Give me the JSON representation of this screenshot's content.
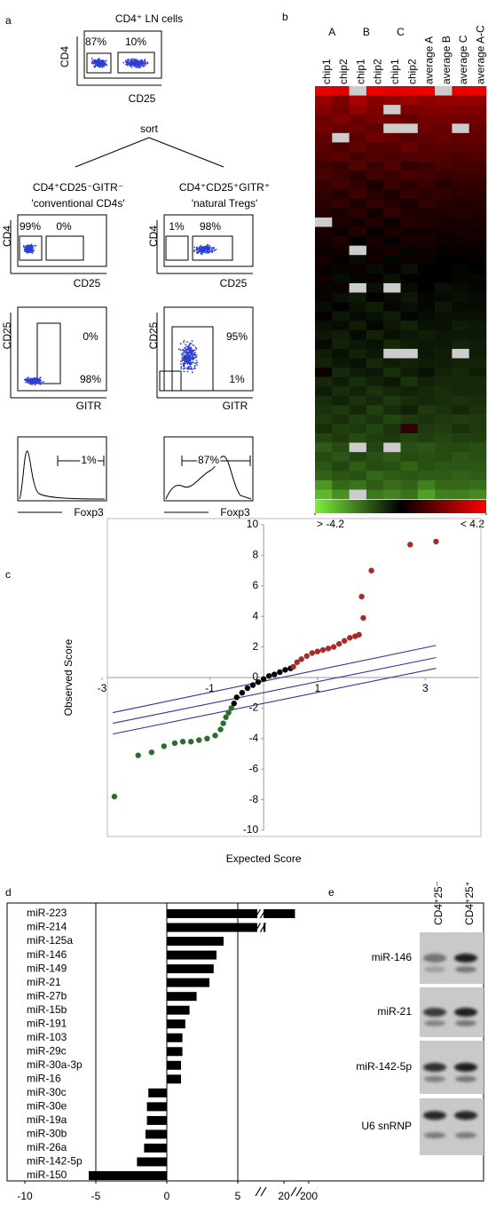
{
  "panel_labels": [
    "a",
    "b",
    "c",
    "d",
    "e"
  ],
  "panel_a": {
    "top": {
      "title": "CD4⁺ LN cells",
      "y_label": "CD4",
      "x_label": "CD25",
      "gates": [
        "87%",
        "10%"
      ]
    },
    "sort_label": "sort",
    "groups": [
      {
        "title": "CD4⁺CD25⁻GITR⁻",
        "subtitle": "'conventional CD4s'",
        "plot1": {
          "y_label": "CD4",
          "x_label": "CD25",
          "gates": [
            "99%",
            "0%"
          ]
        },
        "plot2": {
          "y_label": "CD25",
          "x_label": "GITR",
          "gates": [
            "0%",
            "98%"
          ]
        },
        "histogram": {
          "x_label": "Foxp3",
          "gate": "1%"
        }
      },
      {
        "title": "CD4⁺CD25⁺GITR⁺",
        "subtitle": "'natural Tregs'",
        "plot1": {
          "y_label": "CD4",
          "x_label": "CD25",
          "gates": [
            "1%",
            "98%"
          ]
        },
        "plot2": {
          "y_label": "CD25",
          "x_label": "GITR",
          "gates": [
            "95%",
            "1%"
          ]
        },
        "histogram": {
          "x_label": "Foxp3",
          "gate": "87%"
        }
      }
    ]
  },
  "chart_data": [
    {
      "type": "heatmap",
      "group_labels": [
        "A",
        "B",
        "C"
      ],
      "columns": [
        "chip1",
        "chip2",
        "chip1",
        "chip2",
        "chip1",
        "chip2",
        "average A",
        "average B",
        "average C",
        "average A-C"
      ],
      "zlim": [
        -4.2,
        4.2
      ],
      "colorbar_ticks": [
        {
          "value": -4.2,
          "label": "> -4.2"
        },
        {
          "value": 4.2,
          "label": "< 4.2"
        }
      ],
      "colors": [
        "#7cf03a",
        "#000000",
        "#ff0000"
      ],
      "missing_color": "#cccccc",
      "values": [
        [
          3.8,
          3.6,
          null,
          3.9,
          3.7,
          3.8,
          3.9,
          null,
          3.8,
          3.9
        ],
        [
          2.5,
          2.0,
          2.8,
          2.2,
          2.4,
          2.6,
          2.3,
          2.4,
          2.5,
          2.4
        ],
        [
          2.2,
          1.9,
          2.4,
          2.1,
          null,
          2.0,
          2.1,
          2.2,
          2.1,
          2.1
        ],
        [
          1.8,
          2.1,
          1.7,
          2.0,
          1.9,
          1.6,
          1.9,
          1.9,
          1.8,
          1.9
        ],
        [
          1.9,
          1.7,
          1.8,
          1.6,
          null,
          null,
          1.8,
          1.7,
          null,
          1.7
        ],
        [
          1.6,
          null,
          1.5,
          1.9,
          1.7,
          1.4,
          1.6,
          1.7,
          1.6,
          1.6
        ],
        [
          1.5,
          1.2,
          1.6,
          1.3,
          1.4,
          1.7,
          1.4,
          1.5,
          1.5,
          1.5
        ],
        [
          1.3,
          1.5,
          1.1,
          1.4,
          1.2,
          1.3,
          1.4,
          1.3,
          1.2,
          1.3
        ],
        [
          1.1,
          0.9,
          1.4,
          1.0,
          1.3,
          0.8,
          1.0,
          1.2,
          1.1,
          1.1
        ],
        [
          1.2,
          1.0,
          0.7,
          1.1,
          0.9,
          1.2,
          1.1,
          0.9,
          1.0,
          1.0
        ],
        [
          0.9,
          1.1,
          0.8,
          0.4,
          1.0,
          0.7,
          1.0,
          0.6,
          0.8,
          0.8
        ],
        [
          0.8,
          0.6,
          1.0,
          0.7,
          0.5,
          0.9,
          0.7,
          0.8,
          0.7,
          0.7
        ],
        [
          0.7,
          0.9,
          0.5,
          0.8,
          0.6,
          0.4,
          0.8,
          0.6,
          0.5,
          0.6
        ],
        [
          0.6,
          0.4,
          0.7,
          0.3,
          0.8,
          0.5,
          0.5,
          0.5,
          0.6,
          0.5
        ],
        [
          null,
          0.5,
          0.3,
          0.6,
          0.2,
          0.6,
          0.5,
          0.4,
          0.4,
          0.4
        ],
        [
          0.4,
          0.2,
          0.6,
          0.1,
          0.5,
          0.3,
          0.3,
          0.3,
          0.4,
          0.3
        ],
        [
          0.3,
          0.5,
          0.0,
          0.4,
          0.1,
          0.4,
          0.4,
          0.2,
          0.2,
          0.3
        ],
        [
          0.2,
          0.3,
          null,
          0.2,
          0.4,
          -0.1,
          0.2,
          0.1,
          0.1,
          0.1
        ],
        [
          0.4,
          0.1,
          -0.2,
          0.3,
          -0.1,
          0.2,
          0.2,
          0.0,
          0.0,
          0.1
        ],
        [
          0.1,
          -0.1,
          0.2,
          -0.2,
          0.1,
          -0.3,
          0.0,
          0.0,
          -0.1,
          0.0
        ],
        [
          0.3,
          -0.2,
          -0.1,
          0.1,
          -0.3,
          0.0,
          0.0,
          0.0,
          -0.1,
          -0.1
        ],
        [
          -0.1,
          0.2,
          null,
          -0.3,
          null,
          -0.2,
          0.0,
          -0.3,
          -0.2,
          -0.1
        ],
        [
          0.2,
          -0.3,
          -0.4,
          0.0,
          -0.2,
          -0.4,
          -0.1,
          -0.2,
          -0.3,
          -0.2
        ],
        [
          -0.2,
          0.0,
          -0.3,
          -0.5,
          -0.1,
          -0.3,
          -0.1,
          -0.4,
          -0.2,
          -0.2
        ],
        [
          0.1,
          -0.4,
          -0.2,
          -0.3,
          -0.5,
          -0.1,
          -0.2,
          -0.3,
          -0.3,
          -0.3
        ],
        [
          -0.3,
          -0.2,
          -0.5,
          -0.1,
          -0.4,
          -0.6,
          -0.3,
          -0.3,
          -0.5,
          -0.4
        ],
        [
          -0.4,
          -0.5,
          -0.2,
          -0.6,
          -0.3,
          -0.4,
          -0.5,
          -0.4,
          -0.4,
          -0.4
        ],
        [
          -0.2,
          -0.6,
          -0.4,
          -0.3,
          -0.7,
          -0.5,
          -0.4,
          -0.4,
          -0.6,
          -0.5
        ],
        [
          -0.5,
          -0.3,
          -0.6,
          -0.4,
          null,
          null,
          -0.4,
          -0.5,
          null,
          -0.5
        ],
        [
          -0.6,
          -0.4,
          -0.3,
          -0.7,
          -0.5,
          -0.6,
          -0.5,
          -0.5,
          -0.6,
          -0.6
        ],
        [
          0.2,
          -0.7,
          -0.5,
          -0.4,
          -0.8,
          -0.5,
          -0.3,
          -0.6,
          -0.7,
          -0.5
        ],
        [
          -0.7,
          -0.5,
          -0.8,
          -0.6,
          -0.4,
          -0.9,
          -0.6,
          -0.7,
          -0.7,
          -0.7
        ],
        [
          -0.5,
          -0.8,
          -0.6,
          -0.9,
          -0.7,
          -0.6,
          -0.7,
          -0.8,
          -0.7,
          -0.7
        ],
        [
          -0.8,
          -0.6,
          -0.9,
          -0.7,
          -1.0,
          -0.8,
          -0.7,
          -0.8,
          -0.9,
          -0.8
        ],
        [
          -0.9,
          -1.0,
          -0.7,
          -1.1,
          -0.8,
          -0.6,
          -1.0,
          -0.9,
          -0.7,
          -0.9
        ],
        [
          -1.0,
          -0.8,
          -1.1,
          -0.9,
          -1.2,
          -1.0,
          -0.9,
          -1.0,
          -1.1,
          -1.0
        ],
        [
          -0.8,
          -1.1,
          -1.0,
          -1.2,
          -0.9,
          0.8,
          -1.0,
          -1.1,
          -0.9,
          -1.0
        ],
        [
          -1.2,
          -1.0,
          -1.3,
          -1.1,
          -1.0,
          -1.2,
          -1.1,
          -1.2,
          -1.1,
          -1.1
        ],
        [
          -1.6,
          -1.3,
          null,
          -1.2,
          null,
          -1.4,
          -1.5,
          -1.3,
          -1.3,
          -1.4
        ],
        [
          -1.3,
          -1.5,
          -1.2,
          -1.4,
          -1.6,
          -1.3,
          -1.4,
          -1.3,
          -1.5,
          -1.4
        ],
        [
          -1.5,
          -1.2,
          -1.6,
          -1.3,
          -1.4,
          -1.7,
          -1.4,
          -1.5,
          -1.5,
          -1.5
        ],
        [
          -1.7,
          -1.5,
          -1.4,
          -1.8,
          -1.6,
          -1.5,
          -1.6,
          -1.6,
          -1.7,
          -1.6
        ],
        [
          -2.6,
          -1.8,
          -2.0,
          -1.6,
          -1.9,
          -1.7,
          -2.2,
          -1.8,
          -1.8,
          -1.9
        ],
        [
          -3.2,
          -2.5,
          null,
          -2.1,
          -2.3,
          -2.0,
          -2.8,
          -2.2,
          -2.2,
          -2.4
        ]
      ]
    },
    {
      "type": "scatter",
      "x_label": "Expected Score",
      "y_label": "Observed Score",
      "xlim": [
        -3,
        4
      ],
      "ylim": [
        -10,
        10
      ],
      "xticks": [
        -3,
        -1,
        1,
        3
      ],
      "yticks": [
        -10,
        -8,
        -6,
        -4,
        -2,
        0,
        2,
        4,
        6,
        8,
        10
      ],
      "series": [
        {
          "color": "#2f6b2f",
          "x": [
            -2.77,
            -2.33,
            -2.08,
            -1.85,
            -1.65,
            -1.5,
            -1.35,
            -1.2,
            -1.05,
            -0.9,
            -0.8,
            -0.75,
            -0.7,
            -0.65,
            -0.6
          ],
          "y": [
            -7.8,
            -5.1,
            -4.9,
            -4.5,
            -4.3,
            -4.2,
            -4.2,
            -4.1,
            -4.0,
            -3.8,
            -3.4,
            -3.0,
            -2.6,
            -2.3,
            -2.0
          ]
        },
        {
          "color": "#000000",
          "x": [
            -0.55,
            -0.5,
            -0.4,
            -0.3,
            -0.2,
            -0.1,
            0.0,
            0.1,
            0.2,
            0.3,
            0.4,
            0.5
          ],
          "y": [
            -1.7,
            -1.3,
            -1.0,
            -0.7,
            -0.5,
            -0.3,
            -0.1,
            0.1,
            0.2,
            0.35,
            0.5,
            0.6
          ]
        },
        {
          "color": "#a52a2a",
          "x": [
            0.55,
            0.62,
            0.7,
            0.8,
            0.9,
            1.0,
            1.1,
            1.2,
            1.3,
            1.4,
            1.5,
            1.6,
            1.7,
            1.77,
            1.85,
            1.82,
            2.0,
            2.72,
            3.2
          ],
          "y": [
            0.7,
            1.0,
            1.2,
            1.4,
            1.6,
            1.7,
            1.8,
            1.9,
            2.0,
            2.2,
            2.4,
            2.6,
            2.7,
            2.8,
            3.9,
            5.3,
            7.0,
            8.7,
            8.9
          ]
        }
      ],
      "lines": {
        "color": "#333399",
        "items": [
          {
            "x": [
              -2.8,
              3.2
            ],
            "y": [
              -2.3,
              2.1
            ]
          },
          {
            "x": [
              -2.8,
              3.2
            ],
            "y": [
              -3.0,
              1.3
            ]
          },
          {
            "x": [
              -2.8,
              3.2
            ],
            "y": [
              -3.7,
              0.6
            ]
          }
        ]
      }
    },
    {
      "type": "barh",
      "categories": [
        "miR-223",
        "miR-214",
        "miR-125a",
        "miR-146",
        "miR-149",
        "miR-21",
        "miR-27b",
        "miR-15b",
        "miR-191",
        "miR-103",
        "miR-29c",
        "miR-30a-3p",
        "miR-16",
        "miR-30c",
        "miR-30e",
        "miR-19a",
        "miR-30b",
        "miR-26a",
        "miR-142-5p",
        "miR-150"
      ],
      "values": [
        100,
        14,
        4.0,
        3.5,
        3.3,
        3.0,
        2.1,
        1.6,
        1.3,
        1.1,
        1.1,
        1.0,
        1.0,
        -1.3,
        -1.4,
        -1.4,
        -1.5,
        -1.6,
        -2.1,
        -5.5
      ],
      "color": "#000000",
      "xticks": [
        -10,
        -5,
        0,
        5,
        20,
        200
      ],
      "vlines": [
        -5,
        0,
        5
      ]
    }
  ],
  "panel_e": {
    "columns": [
      "CD4⁺25⁻",
      "CD4⁺25⁺"
    ],
    "rows": [
      "miR-146",
      "miR-21",
      "miR-142-5p",
      "U6 snRNP"
    ]
  }
}
